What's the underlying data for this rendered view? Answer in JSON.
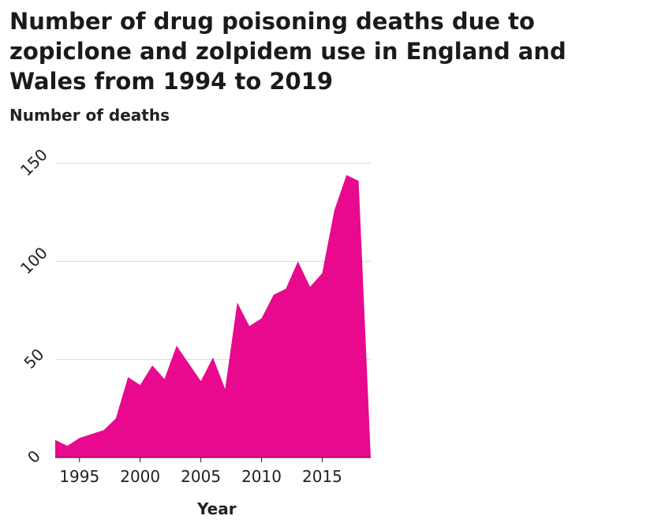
{
  "chart_data": {
    "type": "area",
    "title": "Number of drug poisoning deaths due to zopiclone and zolpidem use in England and Wales from 1994 to 2019",
    "ylabel": "Number of deaths",
    "xlabel": "Year",
    "xlim": [
      1993,
      2019
    ],
    "ylim": [
      0,
      150
    ],
    "xticks": [
      "1995",
      "2000",
      "2005",
      "2010",
      "2015"
    ],
    "yticks": [
      "0",
      "50",
      "100",
      "150"
    ],
    "grid": "horizontal",
    "color": "#e8098e",
    "series": [
      {
        "x": [
          1993,
          1994,
          1995,
          1996,
          1997,
          1998,
          1999,
          2000,
          2001,
          2002,
          2003,
          2004,
          2005,
          2006,
          2007,
          2008,
          2009,
          2010,
          2011,
          2012,
          2013,
          2014,
          2015,
          2016,
          2017,
          2018,
          2019
        ],
        "y": [
          9,
          6,
          10,
          12,
          14,
          20,
          41,
          37,
          47,
          40,
          57,
          48,
          39,
          51,
          35,
          79,
          67,
          71,
          83,
          86,
          100,
          87,
          94,
          126,
          144,
          141,
          0
        ]
      }
    ]
  }
}
